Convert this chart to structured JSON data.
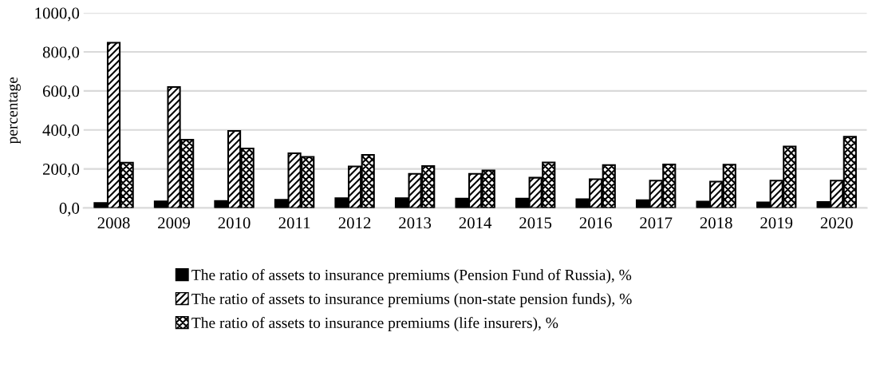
{
  "chart_data": {
    "type": "bar",
    "ylabel": "percentage",
    "categories": [
      "2008",
      "2009",
      "2010",
      "2011",
      "2012",
      "2013",
      "2014",
      "2015",
      "2016",
      "2017",
      "2018",
      "2019",
      "2020"
    ],
    "series": [
      {
        "name": "The ratio of assets to insurance premiums (Pension Fund of Russia), %",
        "color": "#000000",
        "values": [
          25,
          33,
          35,
          42,
          50,
          50,
          48,
          48,
          45,
          40,
          32,
          28,
          30
        ]
      },
      {
        "name": "The ratio of assets to insurance premiums (non-state pension funds), %",
        "color": "#000000",
        "values": [
          847,
          620,
          395,
          280,
          213,
          175,
          175,
          155,
          147,
          140,
          135,
          140,
          140
        ]
      },
      {
        "name": "The ratio of assets to insurance premiums (life insurers), %",
        "color": "#000000",
        "values": [
          232,
          350,
          305,
          262,
          272,
          215,
          192,
          233,
          220,
          223,
          222,
          315,
          365
        ]
      }
    ],
    "ylim": [
      0,
      1000
    ],
    "yticks": [
      {
        "value": 0,
        "label": "0,0"
      },
      {
        "value": 200,
        "label": "200,0"
      },
      {
        "value": 400,
        "label": "400,0"
      },
      {
        "value": 600,
        "label": "600,0"
      },
      {
        "value": 800,
        "label": "800,0"
      },
      {
        "value": 1000,
        "label": "1000,0"
      }
    ],
    "grid": "y",
    "legend": "bottom"
  }
}
